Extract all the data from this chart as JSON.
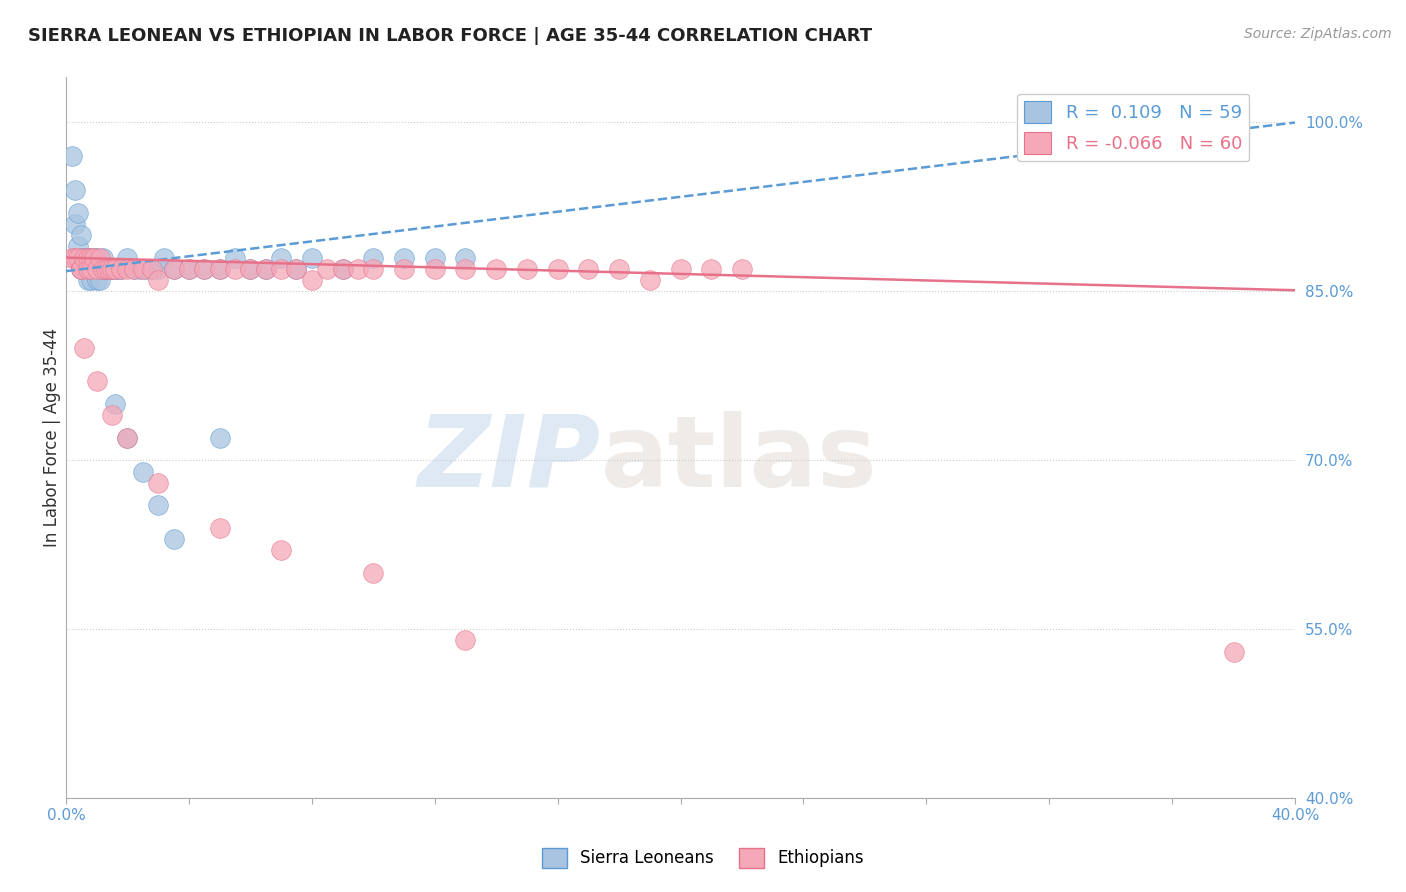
{
  "title": "SIERRA LEONEAN VS ETHIOPIAN IN LABOR FORCE | AGE 35-44 CORRELATION CHART",
  "source_text": "Source: ZipAtlas.com",
  "ylabel": "In Labor Force | Age 35-44",
  "xlim": [
    0.0,
    0.4
  ],
  "ylim": [
    0.4,
    1.04
  ],
  "xticks": [
    0.0,
    0.04,
    0.08,
    0.12,
    0.16,
    0.2,
    0.24,
    0.28,
    0.32,
    0.36,
    0.4
  ],
  "yticks_right": [
    1.0,
    0.85,
    0.7,
    0.55,
    0.4
  ],
  "ytick_right_labels": [
    "100.0%",
    "85.0%",
    "70.0%",
    "55.0%",
    "40.0%"
  ],
  "r_sierra": 0.109,
  "n_sierra": 59,
  "r_ethiopian": -0.066,
  "n_ethiopian": 60,
  "color_sierra": "#a8c4e0",
  "color_ethiopian": "#f4a8b8",
  "trendline_sierra_color": "#5b9bd5",
  "trendline_ethiopian_color": "#e8718a",
  "background_color": "#ffffff",
  "watermark_zip": "ZIP",
  "watermark_atlas": "atlas",
  "sierra_x": [
    0.002,
    0.003,
    0.003,
    0.004,
    0.004,
    0.005,
    0.005,
    0.005,
    0.006,
    0.006,
    0.007,
    0.007,
    0.007,
    0.008,
    0.008,
    0.008,
    0.009,
    0.009,
    0.01,
    0.01,
    0.01,
    0.011,
    0.011,
    0.012,
    0.012,
    0.013,
    0.014,
    0.015,
    0.016,
    0.017,
    0.018,
    0.02,
    0.022,
    0.024,
    0.026,
    0.028,
    0.03,
    0.032,
    0.035,
    0.04,
    0.045,
    0.05,
    0.055,
    0.06,
    0.065,
    0.07,
    0.075,
    0.08,
    0.09,
    0.1,
    0.11,
    0.12,
    0.13,
    0.016,
    0.02,
    0.025,
    0.03,
    0.035,
    0.05
  ],
  "sierra_y": [
    0.97,
    0.94,
    0.91,
    0.92,
    0.89,
    0.9,
    0.88,
    0.87,
    0.88,
    0.87,
    0.88,
    0.87,
    0.86,
    0.88,
    0.87,
    0.86,
    0.88,
    0.87,
    0.88,
    0.87,
    0.86,
    0.87,
    0.86,
    0.88,
    0.87,
    0.87,
    0.87,
    0.87,
    0.87,
    0.87,
    0.87,
    0.88,
    0.87,
    0.87,
    0.87,
    0.87,
    0.87,
    0.88,
    0.87,
    0.87,
    0.87,
    0.87,
    0.88,
    0.87,
    0.87,
    0.88,
    0.87,
    0.88,
    0.87,
    0.88,
    0.88,
    0.88,
    0.88,
    0.75,
    0.72,
    0.69,
    0.66,
    0.63,
    0.72
  ],
  "ethiopian_x": [
    0.002,
    0.003,
    0.004,
    0.005,
    0.005,
    0.006,
    0.007,
    0.007,
    0.008,
    0.008,
    0.009,
    0.01,
    0.011,
    0.012,
    0.013,
    0.014,
    0.015,
    0.016,
    0.018,
    0.02,
    0.022,
    0.025,
    0.028,
    0.03,
    0.035,
    0.04,
    0.045,
    0.05,
    0.055,
    0.06,
    0.065,
    0.07,
    0.075,
    0.08,
    0.085,
    0.09,
    0.095,
    0.1,
    0.11,
    0.12,
    0.13,
    0.14,
    0.15,
    0.16,
    0.17,
    0.18,
    0.19,
    0.2,
    0.21,
    0.22,
    0.006,
    0.01,
    0.015,
    0.02,
    0.03,
    0.05,
    0.07,
    0.1,
    0.13,
    0.38
  ],
  "ethiopian_y": [
    0.88,
    0.88,
    0.88,
    0.87,
    0.87,
    0.88,
    0.88,
    0.87,
    0.88,
    0.87,
    0.88,
    0.87,
    0.88,
    0.87,
    0.87,
    0.87,
    0.87,
    0.87,
    0.87,
    0.87,
    0.87,
    0.87,
    0.87,
    0.86,
    0.87,
    0.87,
    0.87,
    0.87,
    0.87,
    0.87,
    0.87,
    0.87,
    0.87,
    0.86,
    0.87,
    0.87,
    0.87,
    0.87,
    0.87,
    0.87,
    0.87,
    0.87,
    0.87,
    0.87,
    0.87,
    0.87,
    0.86,
    0.87,
    0.87,
    0.87,
    0.8,
    0.77,
    0.74,
    0.72,
    0.68,
    0.64,
    0.62,
    0.6,
    0.54,
    0.53
  ],
  "trendline_sierra_x0": 0.0,
  "trendline_sierra_y0": 0.868,
  "trendline_sierra_x1": 0.4,
  "trendline_sierra_y1": 1.0,
  "trendline_ethiopian_x0": 0.0,
  "trendline_ethiopian_y0": 0.88,
  "trendline_ethiopian_x1": 0.4,
  "trendline_ethiopian_y1": 0.851
}
